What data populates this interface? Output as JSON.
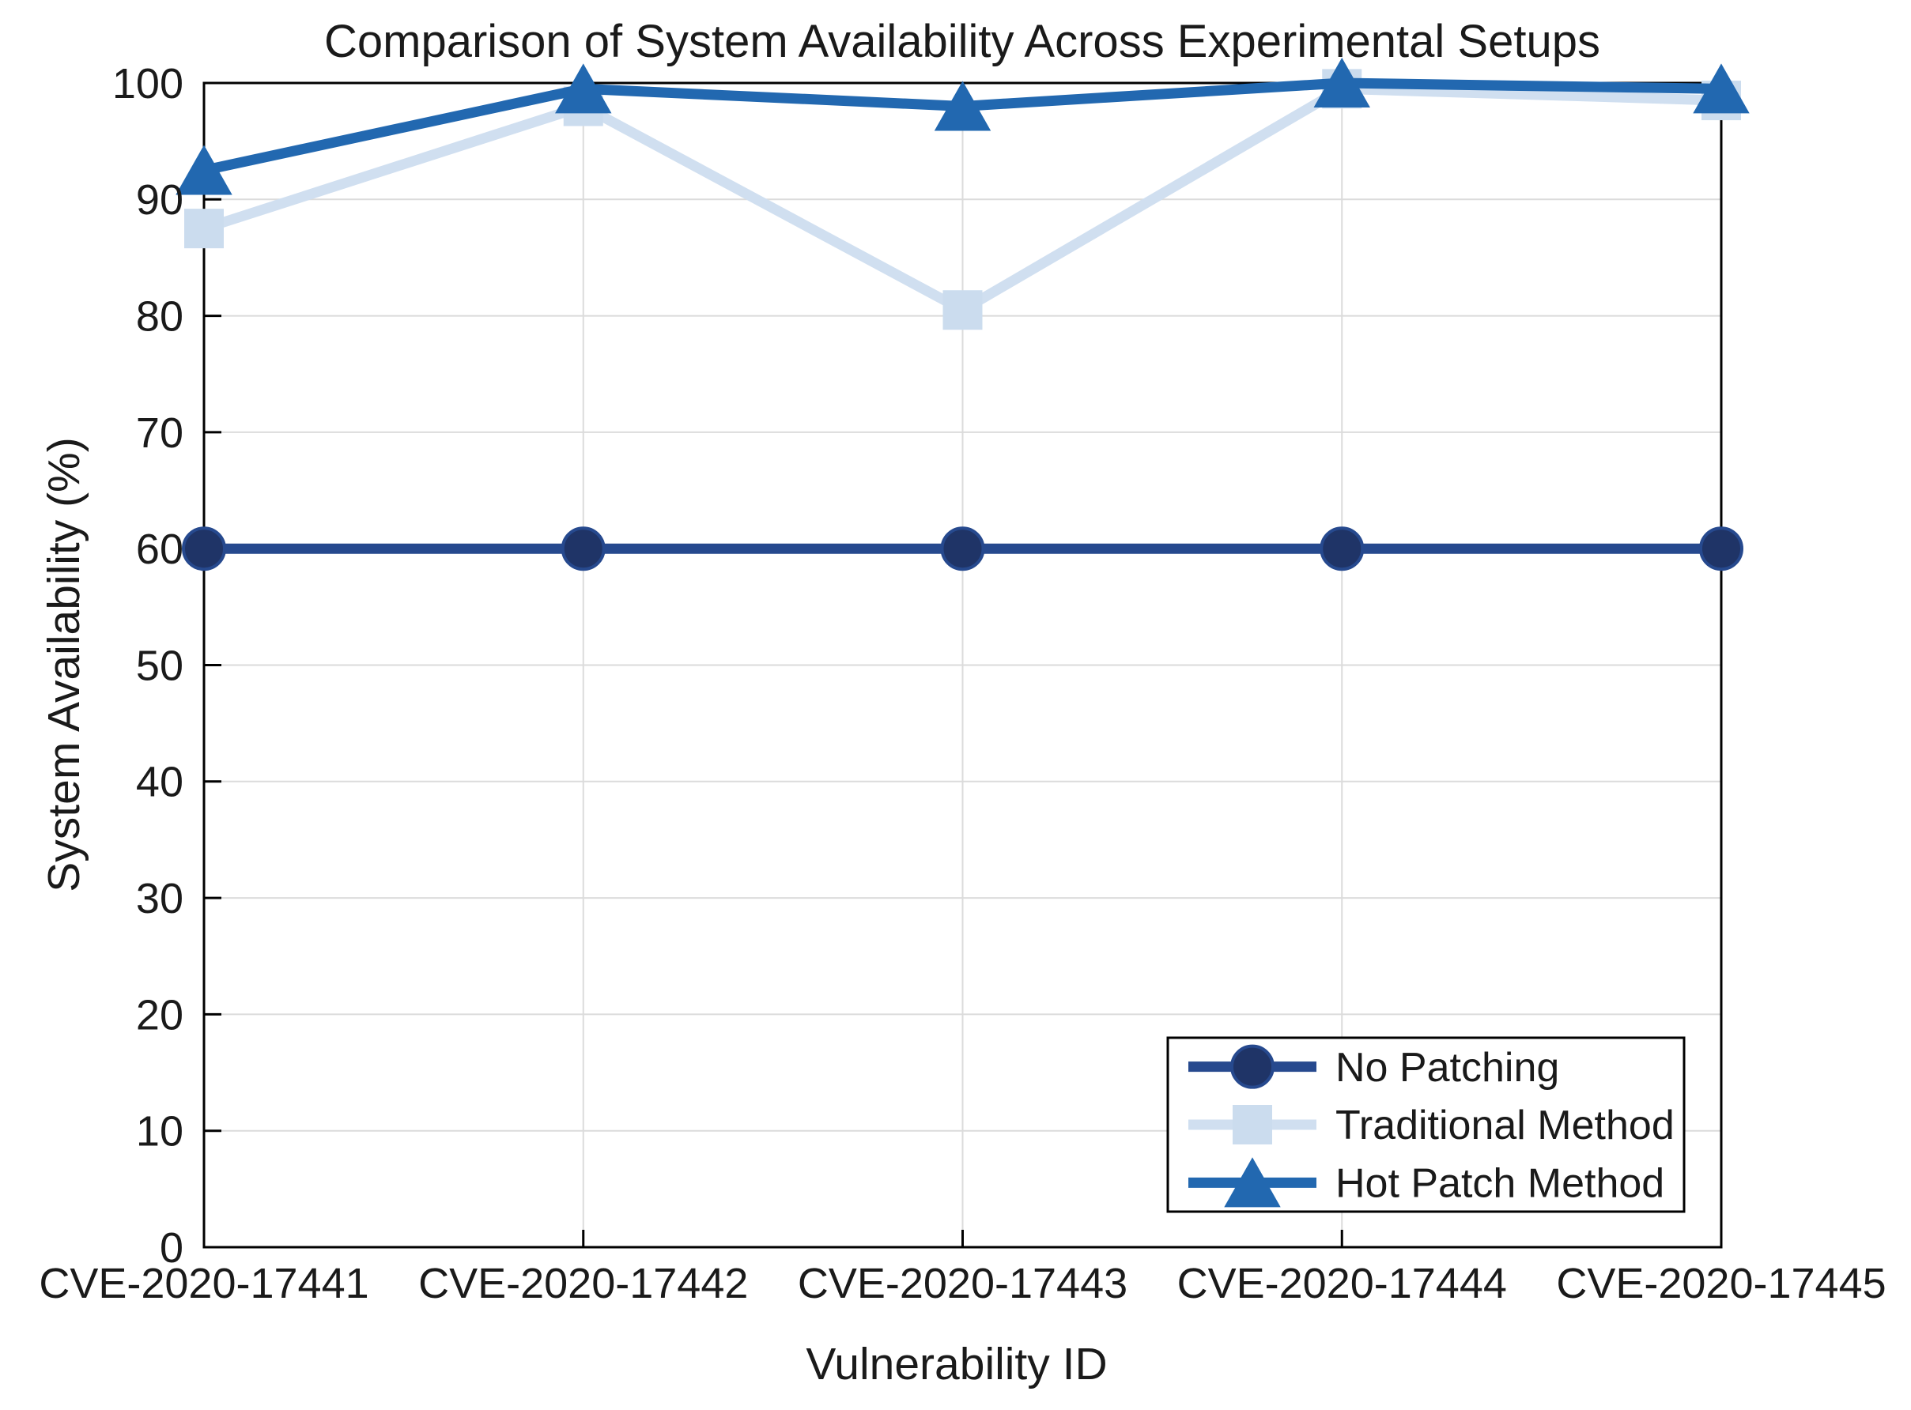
{
  "figure": {
    "background": "#ffffff"
  },
  "chart_data": {
    "type": "line",
    "title": "Comparison of System Availability Across Experimental Setups",
    "xlabel": "Vulnerability ID",
    "ylabel": "System Availability (%)",
    "categories": [
      "CVE-2020-17441",
      "CVE-2020-17442",
      "CVE-2020-17443",
      "CVE-2020-17444",
      "CVE-2020-17445"
    ],
    "ylim": [
      0,
      100
    ],
    "ytick_step": 10,
    "ytick_labels": [
      "0",
      "10",
      "20",
      "30",
      "40",
      "50",
      "60",
      "70",
      "80",
      "90",
      "100"
    ],
    "grid": true,
    "legend": {
      "position": "bottom-right",
      "entries": [
        "No Patching",
        "Traditional Method",
        "Hot Patch Method"
      ]
    },
    "series": [
      {
        "name": "No Patching",
        "marker": "circle",
        "line_color": "#26498E",
        "marker_color": "#1F3467",
        "values": [
          60,
          60,
          60,
          60,
          60
        ]
      },
      {
        "name": "Traditional Method",
        "marker": "square",
        "line_color": "#D0DFF0",
        "marker_color": "#CBDCEE",
        "values": [
          87.5,
          98,
          80.5,
          99.5,
          98.5
        ]
      },
      {
        "name": "Hot Patch Method",
        "marker": "triangle",
        "line_color": "#2268B0",
        "marker_color": "#2268B0",
        "values": [
          92.5,
          99.5,
          98,
          100,
          99.5
        ]
      }
    ],
    "colors": {
      "grid": "#DBDBDB",
      "axis": "#000000",
      "text": "#1A1A1A",
      "legend_background": "#FFFFFF"
    }
  }
}
